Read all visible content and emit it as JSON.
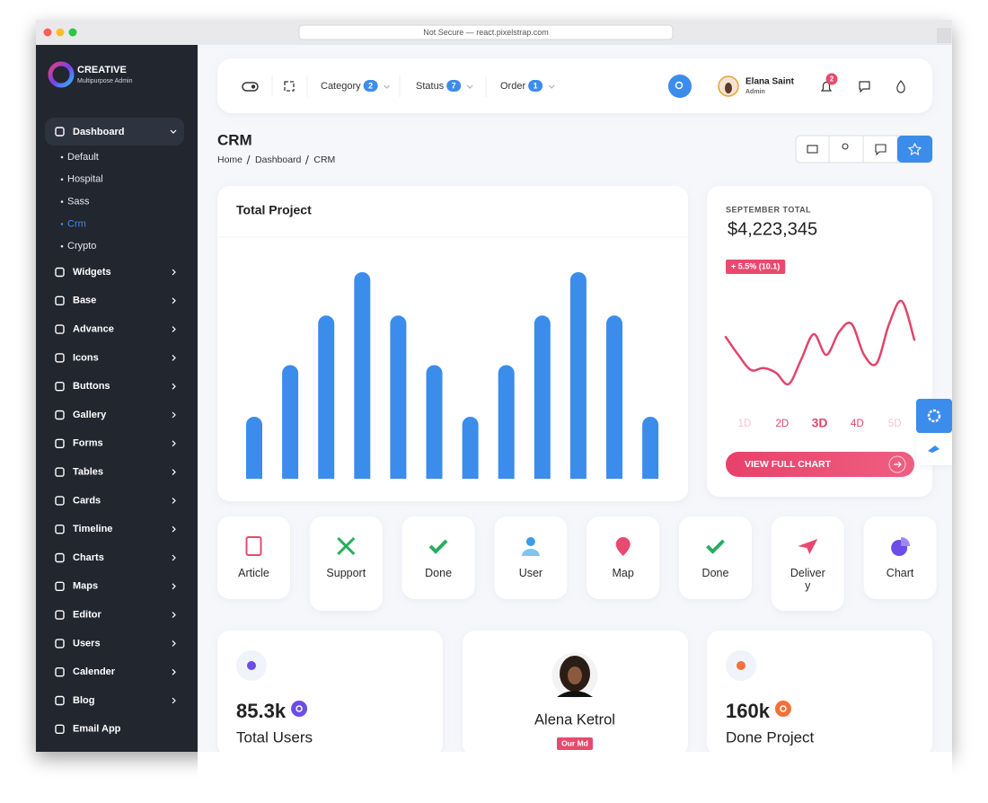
{
  "browser": {
    "address": "Not Secure — react.pixelstrap.com"
  },
  "brand": {
    "name": "CREATIVE",
    "tagline": "Multipurpose Admin"
  },
  "sidebar": {
    "active": {
      "label": "Dashboard",
      "children": [
        "Default",
        "Hospital",
        "Sass",
        "Crm",
        "Crypto"
      ]
    },
    "items": [
      "Widgets",
      "Base",
      "Advance",
      "Icons",
      "Buttons",
      "Gallery",
      "Forms",
      "Tables",
      "Cards",
      "Timeline",
      "Charts",
      "Maps",
      "Editor",
      "Users",
      "Calender",
      "Blog",
      "Email App"
    ]
  },
  "header": {
    "filters": [
      {
        "label": "Category",
        "count": 2
      },
      {
        "label": "Status",
        "count": 7
      },
      {
        "label": "Order",
        "count": 1
      }
    ],
    "user": {
      "name": "Elana Saint",
      "role": "Admin"
    },
    "notifications": 2
  },
  "page": {
    "title": "CRM",
    "breadcrumb": [
      "Home",
      "Dashboard",
      "CRM"
    ]
  },
  "chart_data": [
    {
      "type": "bar",
      "title": "Total Project",
      "values": [
        30,
        55,
        79,
        100,
        79,
        55,
        30,
        55,
        79,
        100,
        79,
        30
      ],
      "ylim": [
        0,
        100
      ],
      "color": "#3c8ceb"
    },
    {
      "type": "line",
      "values": [
        57,
        38,
        22,
        24,
        19,
        7,
        33,
        60,
        38,
        62,
        71,
        38,
        29,
        71,
        95,
        54
      ],
      "ylim": [
        0,
        100
      ],
      "color": "#e0466b"
    }
  ],
  "total": {
    "label": "SEPTEMBER TOTAL",
    "amount": "$4,223,345",
    "change": "+ 5.5% (10.1)",
    "ranges": [
      "1D",
      "2D",
      "3D",
      "4D",
      "5D"
    ],
    "button": "VIEW FULL CHART"
  },
  "shortcuts": [
    "Article",
    "Support",
    "Done",
    "User",
    "Map",
    "Done",
    "Delivery",
    "Chart"
  ],
  "stats": [
    {
      "value": "85.3k",
      "label": "Total Users"
    },
    {
      "name": "Alena Ketrol",
      "badge": "Our Md"
    },
    {
      "value": "160k",
      "label": "Done Project"
    }
  ]
}
